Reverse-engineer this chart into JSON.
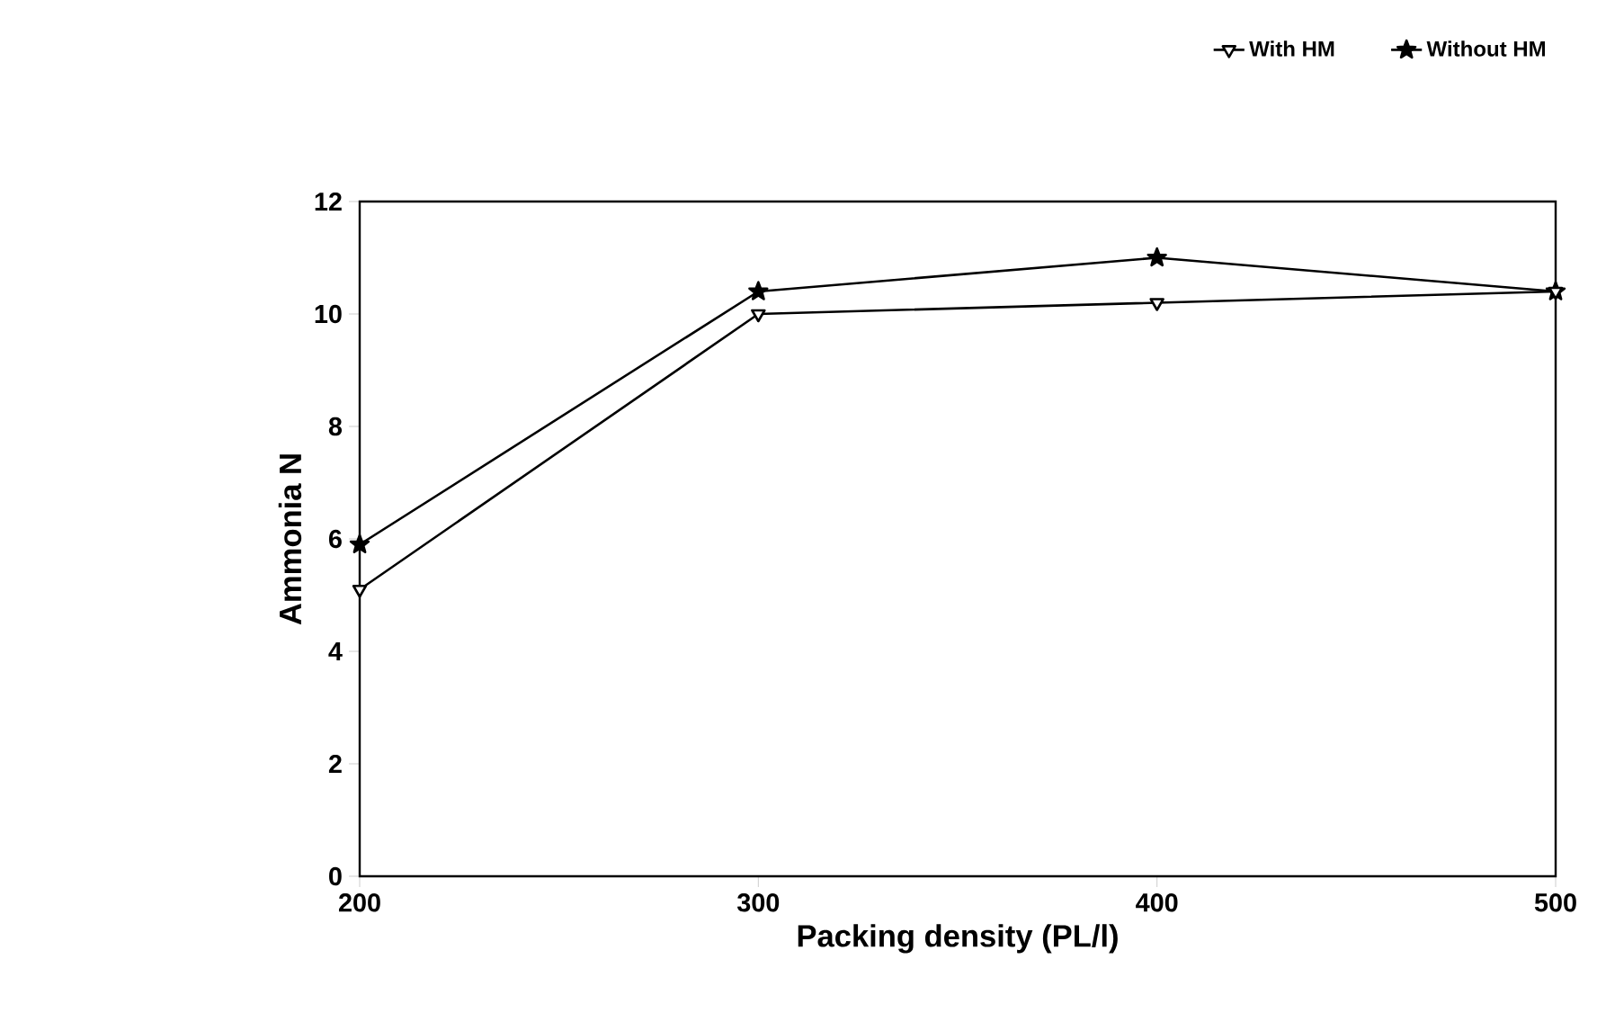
{
  "chart_data": {
    "type": "line",
    "xlabel": "Packing density (PL/l)",
    "ylabel": "Ammonia N",
    "x": [
      200,
      300,
      400,
      500
    ],
    "series": [
      {
        "name": "With HM",
        "color": "#000000",
        "marker": "triangle",
        "values": [
          5.1,
          10.0,
          10.2,
          10.4
        ]
      },
      {
        "name": "Without HM",
        "color": "#000000",
        "marker": "star",
        "values": [
          5.9,
          10.4,
          11.0,
          10.4
        ]
      }
    ],
    "xlim": [
      200,
      500
    ],
    "xticks": [
      200,
      300,
      400,
      500
    ],
    "ylim": [
      0,
      12
    ],
    "yticks": [
      0,
      2,
      4,
      6,
      8,
      10,
      12
    ],
    "legend": "top right",
    "grid": false,
    "line_style": "solid"
  }
}
